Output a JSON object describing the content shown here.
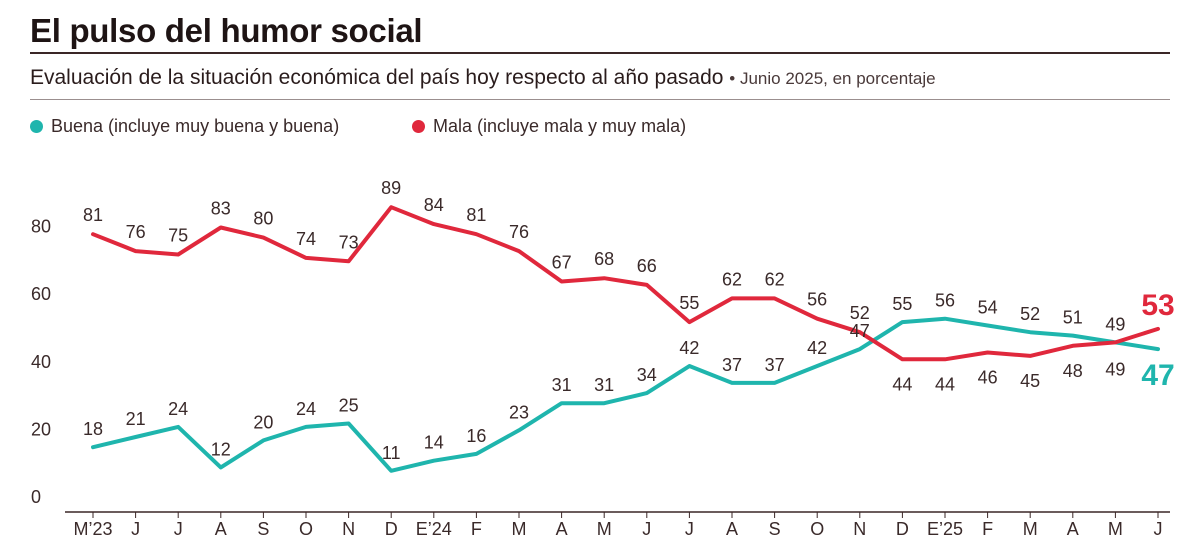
{
  "title": "El pulso del humor social",
  "subtitle": "Evaluación de la situación económica del país hoy respecto al año pasado",
  "subtitle_note": "• Junio 2025, en porcentaje",
  "colors": {
    "buena": "#1fb5ad",
    "mala": "#e0283c",
    "axis": "#3a2626",
    "text": "#3a2a2a"
  },
  "chart_data": {
    "type": "line",
    "categories": [
      "M’23",
      "J",
      "J",
      "A",
      "S",
      "O",
      "N",
      "D",
      "E’24",
      "F",
      "M",
      "A",
      "M",
      "J",
      "J",
      "A",
      "S",
      "O",
      "N",
      "D",
      "E’25",
      "F",
      "M",
      "A",
      "M",
      "J"
    ],
    "ylim": [
      0,
      90
    ],
    "yticks": [
      0,
      20,
      40,
      60,
      80
    ],
    "legend_position": "top-left",
    "grid": false,
    "series": [
      {
        "name": "Buena (incluye muy buena y buena)",
        "color": "#1fb5ad",
        "values": [
          18,
          21,
          24,
          12,
          20,
          24,
          25,
          11,
          14,
          16,
          23,
          31,
          31,
          34,
          42,
          37,
          37,
          42,
          47,
          55,
          56,
          54,
          52,
          51,
          49,
          47
        ],
        "labels": [
          "18",
          "21",
          "24",
          "12",
          "20",
          "24",
          "25",
          "11",
          "14",
          "16",
          "23",
          "31",
          "31",
          "34",
          "42",
          "37",
          "37",
          "42",
          "47",
          "55",
          "56",
          "54",
          "52",
          "51",
          "49",
          "47"
        ]
      },
      {
        "name": "Mala (incluye mala y muy mala)",
        "color": "#e0283c",
        "values": [
          81,
          76,
          75,
          83,
          80,
          74,
          73,
          89,
          84,
          81,
          76,
          67,
          68,
          66,
          55,
          62,
          62,
          56,
          52,
          44,
          44,
          46,
          45,
          48,
          49,
          53
        ],
        "labels": [
          "81",
          "76",
          "75",
          "83",
          "80",
          "74",
          "73",
          "89",
          "84",
          "81",
          "76",
          "67",
          "68",
          "66",
          "55",
          "62",
          "62",
          "56",
          "52",
          "44",
          "44",
          "46",
          "45",
          "48",
          "49",
          "53"
        ]
      }
    ]
  }
}
